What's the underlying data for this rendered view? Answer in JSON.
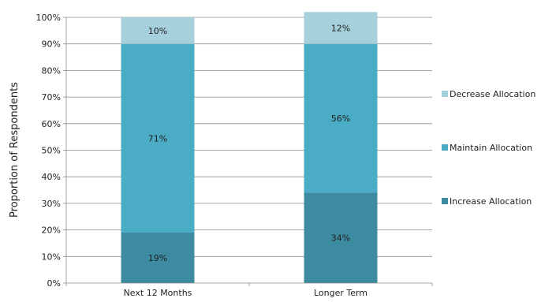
{
  "chart_data": {
    "type": "bar",
    "stacked": true,
    "percent": true,
    "categories": [
      "Next 12 Months",
      "Longer Term"
    ],
    "series": [
      {
        "name": "Increase Allocation",
        "values": [
          19,
          34
        ],
        "color": "#3c8ba0"
      },
      {
        "name": "Maintain Allocation",
        "values": [
          71,
          56
        ],
        "color": "#4bacc6"
      },
      {
        "name": "Decrease Allocation",
        "values": [
          10,
          12
        ],
        "color": "#a6d0dc"
      }
    ],
    "data_labels": [
      [
        "19%",
        "34%"
      ],
      [
        "71%",
        "56%"
      ],
      [
        "10%",
        "12%"
      ]
    ],
    "ylabel": "Proportion of Respondents",
    "xlabel": "",
    "title": "",
    "ylim": [
      0,
      100
    ],
    "yticks": [
      0,
      10,
      20,
      30,
      40,
      50,
      60,
      70,
      80,
      90,
      100
    ],
    "ytick_labels": [
      "0%",
      "10%",
      "20%",
      "30%",
      "40%",
      "50%",
      "60%",
      "70%",
      "80%",
      "90%",
      "100%"
    ],
    "grid": true,
    "legend_position": "right",
    "legend_order": [
      "Decrease Allocation",
      "Maintain Allocation",
      "Increase Allocation"
    ]
  }
}
